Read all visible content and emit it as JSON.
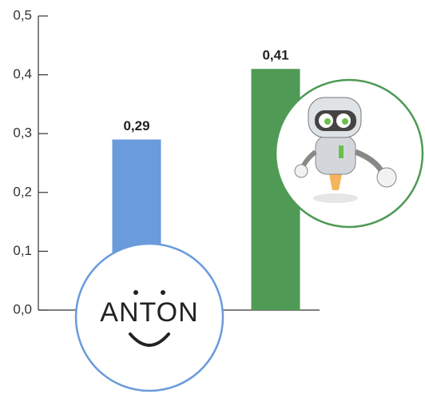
{
  "chart_data": {
    "type": "bar",
    "categories": [
      null,
      null
    ],
    "values": [
      0.29,
      0.41
    ],
    "value_labels": [
      "0,29",
      "0,41"
    ],
    "colors": [
      "#6a9bdc",
      "#4f9a55"
    ],
    "ylim": [
      0,
      0.5
    ],
    "yticks": [
      {
        "value": 0,
        "label": "0,0"
      },
      {
        "value": 0.1,
        "label": "0,1"
      },
      {
        "value": 0.2,
        "label": "0,2"
      },
      {
        "value": 0.3,
        "label": "0,3"
      },
      {
        "value": 0.4,
        "label": "0,4"
      },
      {
        "value": 0.5,
        "label": "0,5"
      }
    ],
    "grid": false,
    "annotations": [
      "ANTON"
    ]
  }
}
